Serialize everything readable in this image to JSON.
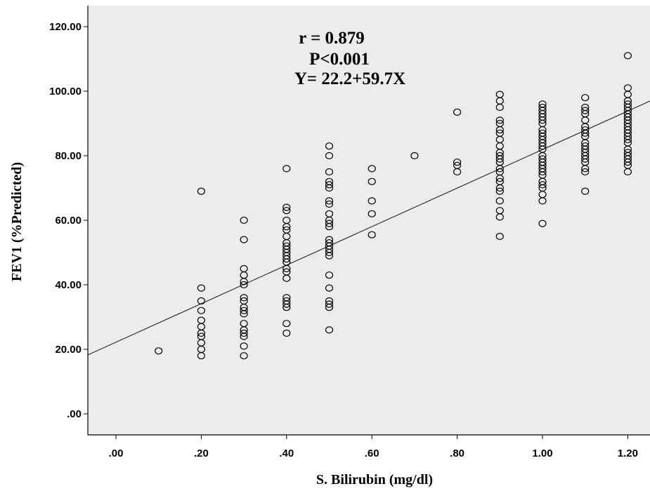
{
  "chart_data": {
    "type": "scatter",
    "title": "",
    "xlabel": "S. Bilirubin (mg/dl)",
    "ylabel": "FEV1 (%Predicted)",
    "xlim": [
      -0.06,
      1.26
    ],
    "ylim": [
      -6,
      125
    ],
    "x_ticks": [
      0.0,
      0.2,
      0.4,
      0.6,
      0.8,
      1.0,
      1.2
    ],
    "x_tick_labels": [
      ".00",
      ".20",
      ".40",
      ".60",
      ".80",
      "1.00",
      "1.20"
    ],
    "y_ticks": [
      0,
      20,
      40,
      60,
      80,
      100,
      120
    ],
    "y_tick_labels": [
      ".00",
      "20.00",
      "40.00",
      "60.00",
      "80.00",
      "100.00",
      "120.00"
    ],
    "grid": false,
    "plot_background": "#ececec",
    "marker_color": "#000000",
    "annotations": [
      "r = 0.879",
      "P<0.001",
      "Y= 22.2+59.7X"
    ],
    "fit_line": {
      "intercept": 22.2,
      "slope": 59.7
    },
    "points": [
      {
        "x": 0.1,
        "y": 19.5
      },
      {
        "x": 0.2,
        "y": 69
      },
      {
        "x": 0.2,
        "y": 39
      },
      {
        "x": 0.2,
        "y": 35
      },
      {
        "x": 0.2,
        "y": 32
      },
      {
        "x": 0.2,
        "y": 29
      },
      {
        "x": 0.2,
        "y": 27
      },
      {
        "x": 0.2,
        "y": 25
      },
      {
        "x": 0.2,
        "y": 24
      },
      {
        "x": 0.2,
        "y": 22
      },
      {
        "x": 0.2,
        "y": 20
      },
      {
        "x": 0.2,
        "y": 18
      },
      {
        "x": 0.3,
        "y": 60
      },
      {
        "x": 0.3,
        "y": 54
      },
      {
        "x": 0.3,
        "y": 45
      },
      {
        "x": 0.3,
        "y": 43
      },
      {
        "x": 0.3,
        "y": 41
      },
      {
        "x": 0.3,
        "y": 40
      },
      {
        "x": 0.3,
        "y": 36
      },
      {
        "x": 0.3,
        "y": 35
      },
      {
        "x": 0.3,
        "y": 33
      },
      {
        "x": 0.3,
        "y": 32
      },
      {
        "x": 0.3,
        "y": 31
      },
      {
        "x": 0.3,
        "y": 28
      },
      {
        "x": 0.3,
        "y": 26
      },
      {
        "x": 0.3,
        "y": 25
      },
      {
        "x": 0.3,
        "y": 24
      },
      {
        "x": 0.3,
        "y": 21
      },
      {
        "x": 0.3,
        "y": 18
      },
      {
        "x": 0.4,
        "y": 76
      },
      {
        "x": 0.4,
        "y": 64
      },
      {
        "x": 0.4,
        "y": 63
      },
      {
        "x": 0.4,
        "y": 60
      },
      {
        "x": 0.4,
        "y": 58
      },
      {
        "x": 0.4,
        "y": 57
      },
      {
        "x": 0.4,
        "y": 55
      },
      {
        "x": 0.4,
        "y": 53
      },
      {
        "x": 0.4,
        "y": 52
      },
      {
        "x": 0.4,
        "y": 51
      },
      {
        "x": 0.4,
        "y": 50
      },
      {
        "x": 0.4,
        "y": 49
      },
      {
        "x": 0.4,
        "y": 48
      },
      {
        "x": 0.4,
        "y": 47
      },
      {
        "x": 0.4,
        "y": 45
      },
      {
        "x": 0.4,
        "y": 44
      },
      {
        "x": 0.4,
        "y": 42
      },
      {
        "x": 0.4,
        "y": 36
      },
      {
        "x": 0.4,
        "y": 35
      },
      {
        "x": 0.4,
        "y": 34
      },
      {
        "x": 0.4,
        "y": 33
      },
      {
        "x": 0.4,
        "y": 28
      },
      {
        "x": 0.4,
        "y": 25
      },
      {
        "x": 0.5,
        "y": 83
      },
      {
        "x": 0.5,
        "y": 80
      },
      {
        "x": 0.5,
        "y": 75
      },
      {
        "x": 0.5,
        "y": 72
      },
      {
        "x": 0.5,
        "y": 71
      },
      {
        "x": 0.5,
        "y": 70
      },
      {
        "x": 0.5,
        "y": 66
      },
      {
        "x": 0.5,
        "y": 65
      },
      {
        "x": 0.5,
        "y": 62
      },
      {
        "x": 0.5,
        "y": 60
      },
      {
        "x": 0.5,
        "y": 59
      },
      {
        "x": 0.5,
        "y": 58
      },
      {
        "x": 0.5,
        "y": 54
      },
      {
        "x": 0.5,
        "y": 53
      },
      {
        "x": 0.5,
        "y": 52
      },
      {
        "x": 0.5,
        "y": 51
      },
      {
        "x": 0.5,
        "y": 50
      },
      {
        "x": 0.5,
        "y": 49
      },
      {
        "x": 0.5,
        "y": 43
      },
      {
        "x": 0.5,
        "y": 39
      },
      {
        "x": 0.5,
        "y": 35
      },
      {
        "x": 0.5,
        "y": 34
      },
      {
        "x": 0.5,
        "y": 33
      },
      {
        "x": 0.5,
        "y": 26
      },
      {
        "x": 0.6,
        "y": 76
      },
      {
        "x": 0.6,
        "y": 72
      },
      {
        "x": 0.6,
        "y": 66
      },
      {
        "x": 0.6,
        "y": 62
      },
      {
        "x": 0.6,
        "y": 55.5
      },
      {
        "x": 0.7,
        "y": 80
      },
      {
        "x": 0.8,
        "y": 93.5
      },
      {
        "x": 0.8,
        "y": 78
      },
      {
        "x": 0.8,
        "y": 77
      },
      {
        "x": 0.8,
        "y": 75
      },
      {
        "x": 0.9,
        "y": 99
      },
      {
        "x": 0.9,
        "y": 97
      },
      {
        "x": 0.9,
        "y": 95
      },
      {
        "x": 0.9,
        "y": 91
      },
      {
        "x": 0.9,
        "y": 90
      },
      {
        "x": 0.9,
        "y": 88
      },
      {
        "x": 0.9,
        "y": 87
      },
      {
        "x": 0.9,
        "y": 85
      },
      {
        "x": 0.9,
        "y": 83
      },
      {
        "x": 0.9,
        "y": 81
      },
      {
        "x": 0.9,
        "y": 80
      },
      {
        "x": 0.9,
        "y": 79
      },
      {
        "x": 0.9,
        "y": 78
      },
      {
        "x": 0.9,
        "y": 76
      },
      {
        "x": 0.9,
        "y": 75
      },
      {
        "x": 0.9,
        "y": 73
      },
      {
        "x": 0.9,
        "y": 72
      },
      {
        "x": 0.9,
        "y": 70
      },
      {
        "x": 0.9,
        "y": 69
      },
      {
        "x": 0.9,
        "y": 66
      },
      {
        "x": 0.9,
        "y": 63
      },
      {
        "x": 0.9,
        "y": 61
      },
      {
        "x": 0.9,
        "y": 55
      },
      {
        "x": 1.0,
        "y": 96
      },
      {
        "x": 1.0,
        "y": 95
      },
      {
        "x": 1.0,
        "y": 94
      },
      {
        "x": 1.0,
        "y": 93
      },
      {
        "x": 1.0,
        "y": 92
      },
      {
        "x": 1.0,
        "y": 91
      },
      {
        "x": 1.0,
        "y": 90
      },
      {
        "x": 1.0,
        "y": 88
      },
      {
        "x": 1.0,
        "y": 87
      },
      {
        "x": 1.0,
        "y": 86
      },
      {
        "x": 1.0,
        "y": 85
      },
      {
        "x": 1.0,
        "y": 84
      },
      {
        "x": 1.0,
        "y": 83
      },
      {
        "x": 1.0,
        "y": 82
      },
      {
        "x": 1.0,
        "y": 80
      },
      {
        "x": 1.0,
        "y": 79
      },
      {
        "x": 1.0,
        "y": 78
      },
      {
        "x": 1.0,
        "y": 77
      },
      {
        "x": 1.0,
        "y": 76
      },
      {
        "x": 1.0,
        "y": 75
      },
      {
        "x": 1.0,
        "y": 74
      },
      {
        "x": 1.0,
        "y": 72
      },
      {
        "x": 1.0,
        "y": 71
      },
      {
        "x": 1.0,
        "y": 70
      },
      {
        "x": 1.0,
        "y": 68
      },
      {
        "x": 1.0,
        "y": 66
      },
      {
        "x": 1.0,
        "y": 59
      },
      {
        "x": 1.1,
        "y": 98
      },
      {
        "x": 1.1,
        "y": 95
      },
      {
        "x": 1.1,
        "y": 94
      },
      {
        "x": 1.1,
        "y": 93
      },
      {
        "x": 1.1,
        "y": 91
      },
      {
        "x": 1.1,
        "y": 89
      },
      {
        "x": 1.1,
        "y": 88
      },
      {
        "x": 1.1,
        "y": 87
      },
      {
        "x": 1.1,
        "y": 86
      },
      {
        "x": 1.1,
        "y": 84
      },
      {
        "x": 1.1,
        "y": 83
      },
      {
        "x": 1.1,
        "y": 82
      },
      {
        "x": 1.1,
        "y": 81
      },
      {
        "x": 1.1,
        "y": 80
      },
      {
        "x": 1.1,
        "y": 79
      },
      {
        "x": 1.1,
        "y": 78
      },
      {
        "x": 1.1,
        "y": 76
      },
      {
        "x": 1.1,
        "y": 75
      },
      {
        "x": 1.1,
        "y": 69
      },
      {
        "x": 1.2,
        "y": 111
      },
      {
        "x": 1.2,
        "y": 101
      },
      {
        "x": 1.2,
        "y": 99
      },
      {
        "x": 1.2,
        "y": 97
      },
      {
        "x": 1.2,
        "y": 96
      },
      {
        "x": 1.2,
        "y": 95
      },
      {
        "x": 1.2,
        "y": 94
      },
      {
        "x": 1.2,
        "y": 93
      },
      {
        "x": 1.2,
        "y": 92
      },
      {
        "x": 1.2,
        "y": 91
      },
      {
        "x": 1.2,
        "y": 90
      },
      {
        "x": 1.2,
        "y": 89
      },
      {
        "x": 1.2,
        "y": 88
      },
      {
        "x": 1.2,
        "y": 87
      },
      {
        "x": 1.2,
        "y": 86
      },
      {
        "x": 1.2,
        "y": 85
      },
      {
        "x": 1.2,
        "y": 84
      },
      {
        "x": 1.2,
        "y": 82
      },
      {
        "x": 1.2,
        "y": 81
      },
      {
        "x": 1.2,
        "y": 80
      },
      {
        "x": 1.2,
        "y": 79
      },
      {
        "x": 1.2,
        "y": 78
      },
      {
        "x": 1.2,
        "y": 77
      },
      {
        "x": 1.2,
        "y": 75
      }
    ]
  }
}
